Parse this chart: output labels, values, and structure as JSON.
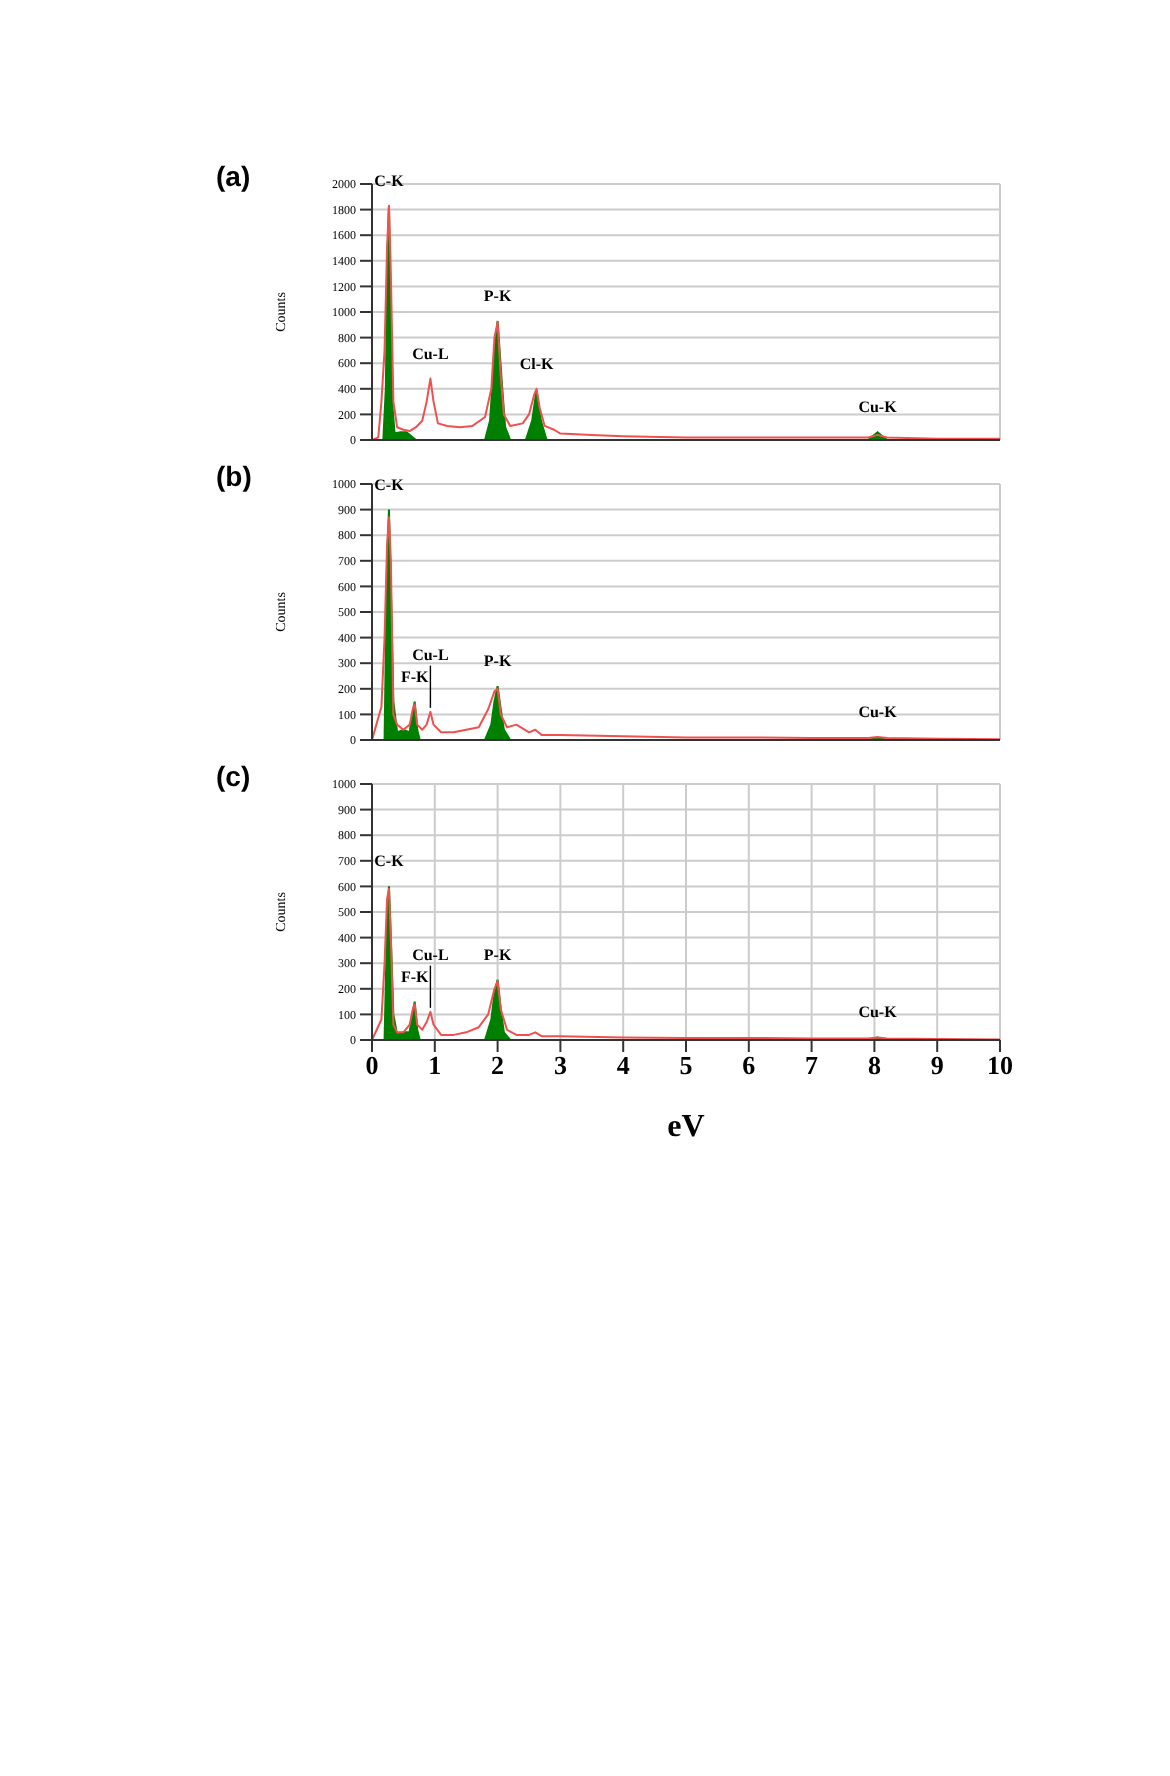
{
  "chart_data": [
    {
      "type": "area",
      "title": "(a)",
      "ylabel": "Counts",
      "xlim": [
        0,
        10
      ],
      "xticks": [
        0,
        1,
        2,
        3,
        4,
        5,
        6,
        7,
        8,
        9,
        10
      ],
      "ylim": [
        0,
        2000
      ],
      "yticks": [
        0,
        200,
        400,
        600,
        800,
        1000,
        1200,
        1400,
        1600,
        1800,
        2000
      ],
      "grid": true,
      "tick_labels": "y",
      "series": [
        {
          "type": "line",
          "color": "#f05050",
          "x": [
            0,
            0.1,
            0.15,
            0.2,
            0.24,
            0.27,
            0.3,
            0.34,
            0.4,
            0.5,
            0.6,
            0.7,
            0.8,
            0.87,
            0.93,
            0.98,
            1.05,
            1.2,
            1.4,
            1.6,
            1.8,
            1.9,
            1.95,
            2.0,
            2.05,
            2.1,
            2.2,
            2.4,
            2.5,
            2.58,
            2.62,
            2.67,
            2.75,
            2.9,
            3.0,
            3.5,
            4,
            5,
            6,
            7,
            7.9,
            8.05,
            8.2,
            9,
            10
          ],
          "values": [
            0,
            20,
            300,
            700,
            1500,
            1830,
            1300,
            300,
            100,
            80,
            70,
            100,
            150,
            300,
            480,
            300,
            130,
            110,
            100,
            110,
            180,
            400,
            800,
            920,
            500,
            200,
            110,
            130,
            200,
            350,
            400,
            250,
            110,
            80,
            50,
            40,
            30,
            20,
            20,
            20,
            20,
            40,
            20,
            10,
            10
          ]
        },
        {
          "color": "#008000",
          "x": [
            0.18,
            0.22,
            0.25,
            0.27,
            0.29,
            0.32,
            0.36,
            0.45,
            0.55,
            0.65,
            0.7,
            1.8,
            1.88,
            1.94,
            2.0,
            2.06,
            2.12,
            2.2,
            2.45,
            2.55,
            2.62,
            2.69,
            2.78,
            7.9,
            8.05,
            8.2
          ],
          "values": [
            0,
            400,
            1500,
            1830,
            1200,
            300,
            50,
            60,
            60,
            20,
            0,
            0,
            150,
            600,
            930,
            500,
            100,
            0,
            0,
            150,
            390,
            150,
            0,
            0,
            60,
            0
          ]
        }
      ],
      "annotations": [
        {
          "text": "C-K",
          "x": 0.27,
          "y": 1830
        },
        {
          "text": "Cu-L",
          "x": 0.93,
          "y": 480
        },
        {
          "text": "P-K",
          "x": 2.0,
          "y": 930
        },
        {
          "text": "Cl-K",
          "x": 2.62,
          "y": 400
        },
        {
          "text": "Cu-K",
          "x": 8.05,
          "y": 60
        }
      ]
    },
    {
      "type": "area",
      "title": "(b)",
      "ylabel": "Counts",
      "xlim": [
        0,
        10
      ],
      "xticks": [
        0,
        1,
        2,
        3,
        4,
        5,
        6,
        7,
        8,
        9,
        10
      ],
      "ylim": [
        0,
        1000
      ],
      "yticks": [
        0,
        100,
        200,
        300,
        400,
        500,
        600,
        700,
        800,
        900,
        1000
      ],
      "grid": true,
      "tick_labels": "y",
      "series": [
        {
          "type": "line",
          "color": "#f05050",
          "x": [
            0,
            0.15,
            0.2,
            0.24,
            0.27,
            0.3,
            0.34,
            0.4,
            0.5,
            0.6,
            0.65,
            0.68,
            0.72,
            0.8,
            0.87,
            0.93,
            0.98,
            1.1,
            1.3,
            1.5,
            1.7,
            1.85,
            1.95,
            2.0,
            2.05,
            2.15,
            2.3,
            2.5,
            2.6,
            2.7,
            3,
            4,
            5,
            6,
            7,
            7.9,
            8.05,
            8.2,
            9,
            10
          ],
          "values": [
            0,
            130,
            400,
            760,
            870,
            700,
            100,
            60,
            40,
            60,
            120,
            140,
            60,
            40,
            60,
            110,
            60,
            30,
            30,
            40,
            50,
            120,
            190,
            200,
            100,
            50,
            60,
            30,
            40,
            20,
            20,
            15,
            10,
            10,
            8,
            8,
            12,
            8,
            5,
            3
          ]
        },
        {
          "color": "#008000",
          "x": [
            0.2,
            0.24,
            0.27,
            0.3,
            0.34,
            0.4,
            0.5,
            0.6,
            0.64,
            0.68,
            0.72,
            0.76,
            1.8,
            1.9,
            1.95,
            2.0,
            2.05,
            2.1,
            2.2,
            7.9,
            8.05,
            8.2
          ],
          "values": [
            0,
            700,
            900,
            600,
            150,
            30,
            40,
            30,
            100,
            150,
            40,
            0,
            0,
            60,
            150,
            210,
            120,
            40,
            0,
            0,
            10,
            0
          ]
        }
      ],
      "annotations": [
        {
          "text": "C-K",
          "x": 0.27,
          "y": 900
        },
        {
          "text": "F-K",
          "x": 0.68,
          "y": 150
        },
        {
          "text": "Cu-L",
          "x": 0.93,
          "y": 110
        },
        {
          "text": "P-K",
          "x": 2.0,
          "y": 210
        },
        {
          "text": "Cu-K",
          "x": 8.05,
          "y": 10
        }
      ]
    },
    {
      "type": "area",
      "title": "(c)",
      "xlabel": "eV",
      "ylabel": "Counts",
      "xlim": [
        0,
        10
      ],
      "xticks": [
        0,
        1,
        2,
        3,
        4,
        5,
        6,
        7,
        8,
        9,
        10
      ],
      "ylim": [
        0,
        1000
      ],
      "yticks": [
        0,
        100,
        200,
        300,
        400,
        500,
        600,
        700,
        800,
        900,
        1000
      ],
      "grid": true,
      "series": [
        {
          "type": "line",
          "color": "#f05050",
          "x": [
            0,
            0.15,
            0.2,
            0.24,
            0.27,
            0.3,
            0.34,
            0.4,
            0.5,
            0.6,
            0.65,
            0.68,
            0.72,
            0.8,
            0.87,
            0.93,
            0.98,
            1.1,
            1.3,
            1.5,
            1.7,
            1.85,
            1.95,
            2.0,
            2.05,
            2.15,
            2.3,
            2.5,
            2.6,
            2.7,
            3,
            4,
            5,
            6,
            7,
            7.9,
            8.05,
            8.2,
            9,
            10
          ],
          "values": [
            0,
            80,
            300,
            550,
            590,
            400,
            60,
            30,
            30,
            60,
            120,
            140,
            60,
            40,
            70,
            110,
            60,
            20,
            20,
            30,
            50,
            100,
            200,
            230,
            120,
            40,
            20,
            20,
            30,
            15,
            15,
            10,
            8,
            8,
            6,
            6,
            10,
            6,
            4,
            2
          ]
        },
        {
          "color": "#008000",
          "x": [
            0.2,
            0.24,
            0.27,
            0.3,
            0.34,
            0.4,
            0.5,
            0.6,
            0.64,
            0.68,
            0.72,
            0.76,
            1.8,
            1.9,
            1.95,
            2.0,
            2.05,
            2.1,
            2.2,
            7.9,
            8.05,
            8.2
          ],
          "values": [
            0,
            450,
            600,
            400,
            100,
            20,
            30,
            30,
            100,
            150,
            40,
            0,
            0,
            80,
            180,
            235,
            120,
            30,
            0,
            0,
            10,
            0
          ]
        }
      ],
      "annotations": [
        {
          "text": "C-K",
          "x": 0.27,
          "y": 600
        },
        {
          "text": "F-K",
          "x": 0.68,
          "y": 150
        },
        {
          "text": "Cu-L",
          "x": 0.93,
          "y": 110
        },
        {
          "text": "P-K",
          "x": 2.0,
          "y": 235
        },
        {
          "text": "Cu-K",
          "x": 8.05,
          "y": 10
        }
      ]
    }
  ]
}
